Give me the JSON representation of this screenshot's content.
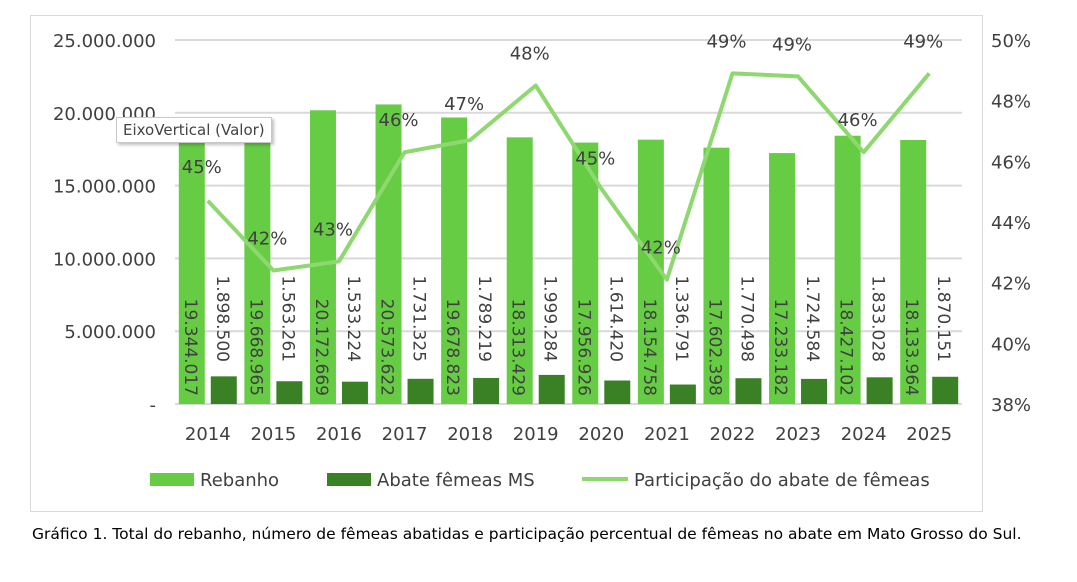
{
  "chart_data": {
    "type": "bar",
    "categories": [
      "2014",
      "2015",
      "2016",
      "2017",
      "2018",
      "2019",
      "2020",
      "2021",
      "2022",
      "2023",
      "2024",
      "2025"
    ],
    "series": [
      {
        "name": "Rebanho",
        "type": "bar",
        "axis": "left",
        "color": "#66cc44",
        "values": [
          19344017,
          19668965,
          20172669,
          20573622,
          19678823,
          18313429,
          17956926,
          18154758,
          17602398,
          17233182,
          18427102,
          18133964
        ],
        "labels": [
          "19.344.017",
          "19.668.965",
          "20.172.669",
          "20.573.622",
          "19.678.823",
          "18.313.429",
          "17.956.926",
          "18.154.758",
          "17.602.398",
          "17.233.182",
          "18.427.102",
          "18.133.964"
        ]
      },
      {
        "name": "Abate fêmeas MS",
        "type": "bar",
        "axis": "left",
        "color": "#3a8024",
        "values": [
          1898500,
          1563261,
          1533224,
          1731325,
          1789219,
          1999284,
          1614420,
          1336791,
          1770498,
          1724584,
          1833028,
          1870151
        ],
        "labels": [
          "1.898.500",
          "1.563.261",
          "1.533.224",
          "1.731.325",
          "1.789.219",
          "1.999.284",
          "1.614.420",
          "1.336.791",
          "1.770.498",
          "1.724.584",
          "1.833.028",
          "1.870.151"
        ]
      },
      {
        "name": "Participação do abate de fêmeas",
        "type": "line",
        "axis": "right",
        "color": "#8ed870",
        "values": [
          44.7,
          42.4,
          42.7,
          46.3,
          46.7,
          48.5,
          45.1,
          42.1,
          48.9,
          48.8,
          46.3,
          48.9
        ],
        "labels": [
          "45%",
          "42%",
          "43%",
          "46%",
          "47%",
          "48%",
          "45%",
          "42%",
          "49%",
          "49%",
          "46%",
          "49%"
        ]
      }
    ],
    "y_left": {
      "range": [
        0,
        25000000
      ],
      "ticks": [
        0,
        5000000,
        10000000,
        15000000,
        20000000,
        25000000
      ],
      "tick_labels": [
        "-",
        "5.000.000",
        "10.000.000",
        "15.000.000",
        "20.000.000",
        "25.000.000"
      ]
    },
    "y_right": {
      "range": [
        38,
        50
      ],
      "ticks": [
        38,
        40,
        42,
        44,
        46,
        48,
        50
      ],
      "tick_labels": [
        "38%",
        "40%",
        "42%",
        "44%",
        "46%",
        "48%",
        "50%"
      ]
    },
    "grid": true,
    "legend": "bottom"
  },
  "tooltip": "EixoVertical (Valor)",
  "caption": "Gráfico 1. Total do rebanho, número de fêmeas abatidas e participação percentual de fêmeas no abate em Mato Grosso do Sul."
}
